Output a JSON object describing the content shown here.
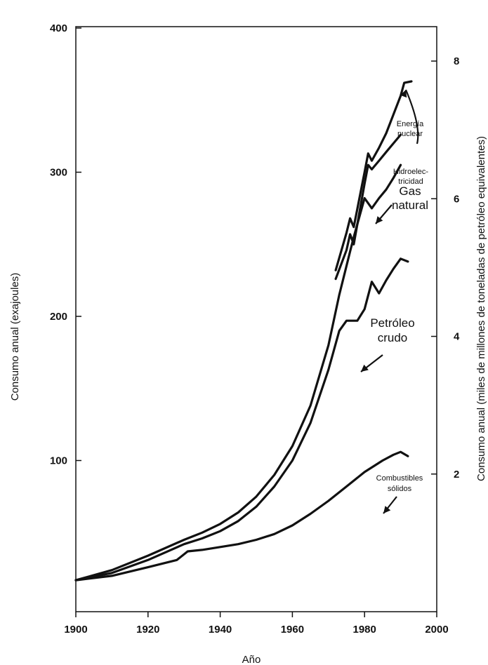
{
  "chart_data": {
    "type": "area",
    "xlabel": "Año",
    "ylabel": "Consumo anual (exajoules)",
    "y2label": "Consumo anual (miles de millones de toneladas de petróleo equivalentes)",
    "xlim": [
      1900,
      2000
    ],
    "ylim": [
      0,
      400
    ],
    "y2lim": [
      0,
      8.5
    ],
    "x_ticks": [
      "1900",
      "1920",
      "1940",
      "1960",
      "1980",
      "2000"
    ],
    "y_ticks": [
      "100",
      "200",
      "300",
      "400"
    ],
    "y2_ticks": [
      "2",
      "4",
      "6",
      "8"
    ],
    "grid": false,
    "stacked": true,
    "series": [
      {
        "name": "Combustibles sólidos",
        "label_lines": [
          "Combustibles",
          "sólidos"
        ],
        "x": [
          1900,
          1910,
          1920,
          1928,
          1931,
          1935,
          1940,
          1945,
          1950,
          1955,
          1960,
          1965,
          1970,
          1975,
          1980,
          1985,
          1988,
          1990,
          1992
        ],
        "y": [
          17,
          20,
          26,
          31,
          37,
          38,
          40,
          42,
          45,
          49,
          55,
          63,
          72,
          82,
          92,
          100,
          104,
          106,
          103
        ]
      },
      {
        "name": "Petróleo crudo",
        "label_lines": [
          "Petróleo",
          "crudo"
        ],
        "x": [
          1900,
          1910,
          1920,
          1930,
          1935,
          1940,
          1945,
          1950,
          1955,
          1960,
          1965,
          1970,
          1973,
          1975,
          1978,
          1980,
          1982,
          1984,
          1986,
          1988,
          1990,
          1992
        ],
        "y": [
          17,
          22,
          31,
          42,
          46,
          51,
          58,
          68,
          82,
          100,
          126,
          163,
          190,
          197,
          197,
          205,
          224,
          216,
          225,
          233,
          240,
          238
        ]
      },
      {
        "name": "Gas natural",
        "label_lines": [
          "Gas",
          "natural"
        ],
        "x": [
          1900,
          1910,
          1920,
          1930,
          1935,
          1940,
          1945,
          1950,
          1955,
          1960,
          1965,
          1970,
          1973,
          1976,
          1977,
          1980,
          1982,
          1984,
          1986,
          1988,
          1990
        ],
        "y": [
          17,
          24,
          34,
          45,
          50,
          56,
          64,
          75,
          90,
          110,
          138,
          180,
          215,
          245,
          255,
          282,
          275,
          282,
          288,
          296,
          305
        ]
      },
      {
        "name": "Hidroelectricidad",
        "label_lines": [
          "Hidroelec-",
          "tricidad"
        ],
        "x": [
          1972,
          1975,
          1976,
          1977,
          1980,
          1981,
          1982,
          1984,
          1986,
          1988,
          1990
        ],
        "y": [
          226,
          246,
          257,
          250,
          292,
          305,
          302,
          308,
          314,
          320,
          326
        ]
      },
      {
        "name": "Energía nuclear",
        "label_lines": [
          "Energía",
          "nuclear"
        ],
        "x": [
          1972,
          1975,
          1976,
          1977,
          1980,
          1981,
          1982,
          1984,
          1986,
          1988,
          1990,
          1991,
          1993
        ],
        "y": [
          232,
          258,
          268,
          262,
          300,
          313,
          308,
          317,
          327,
          340,
          353,
          362,
          363
        ]
      }
    ]
  }
}
